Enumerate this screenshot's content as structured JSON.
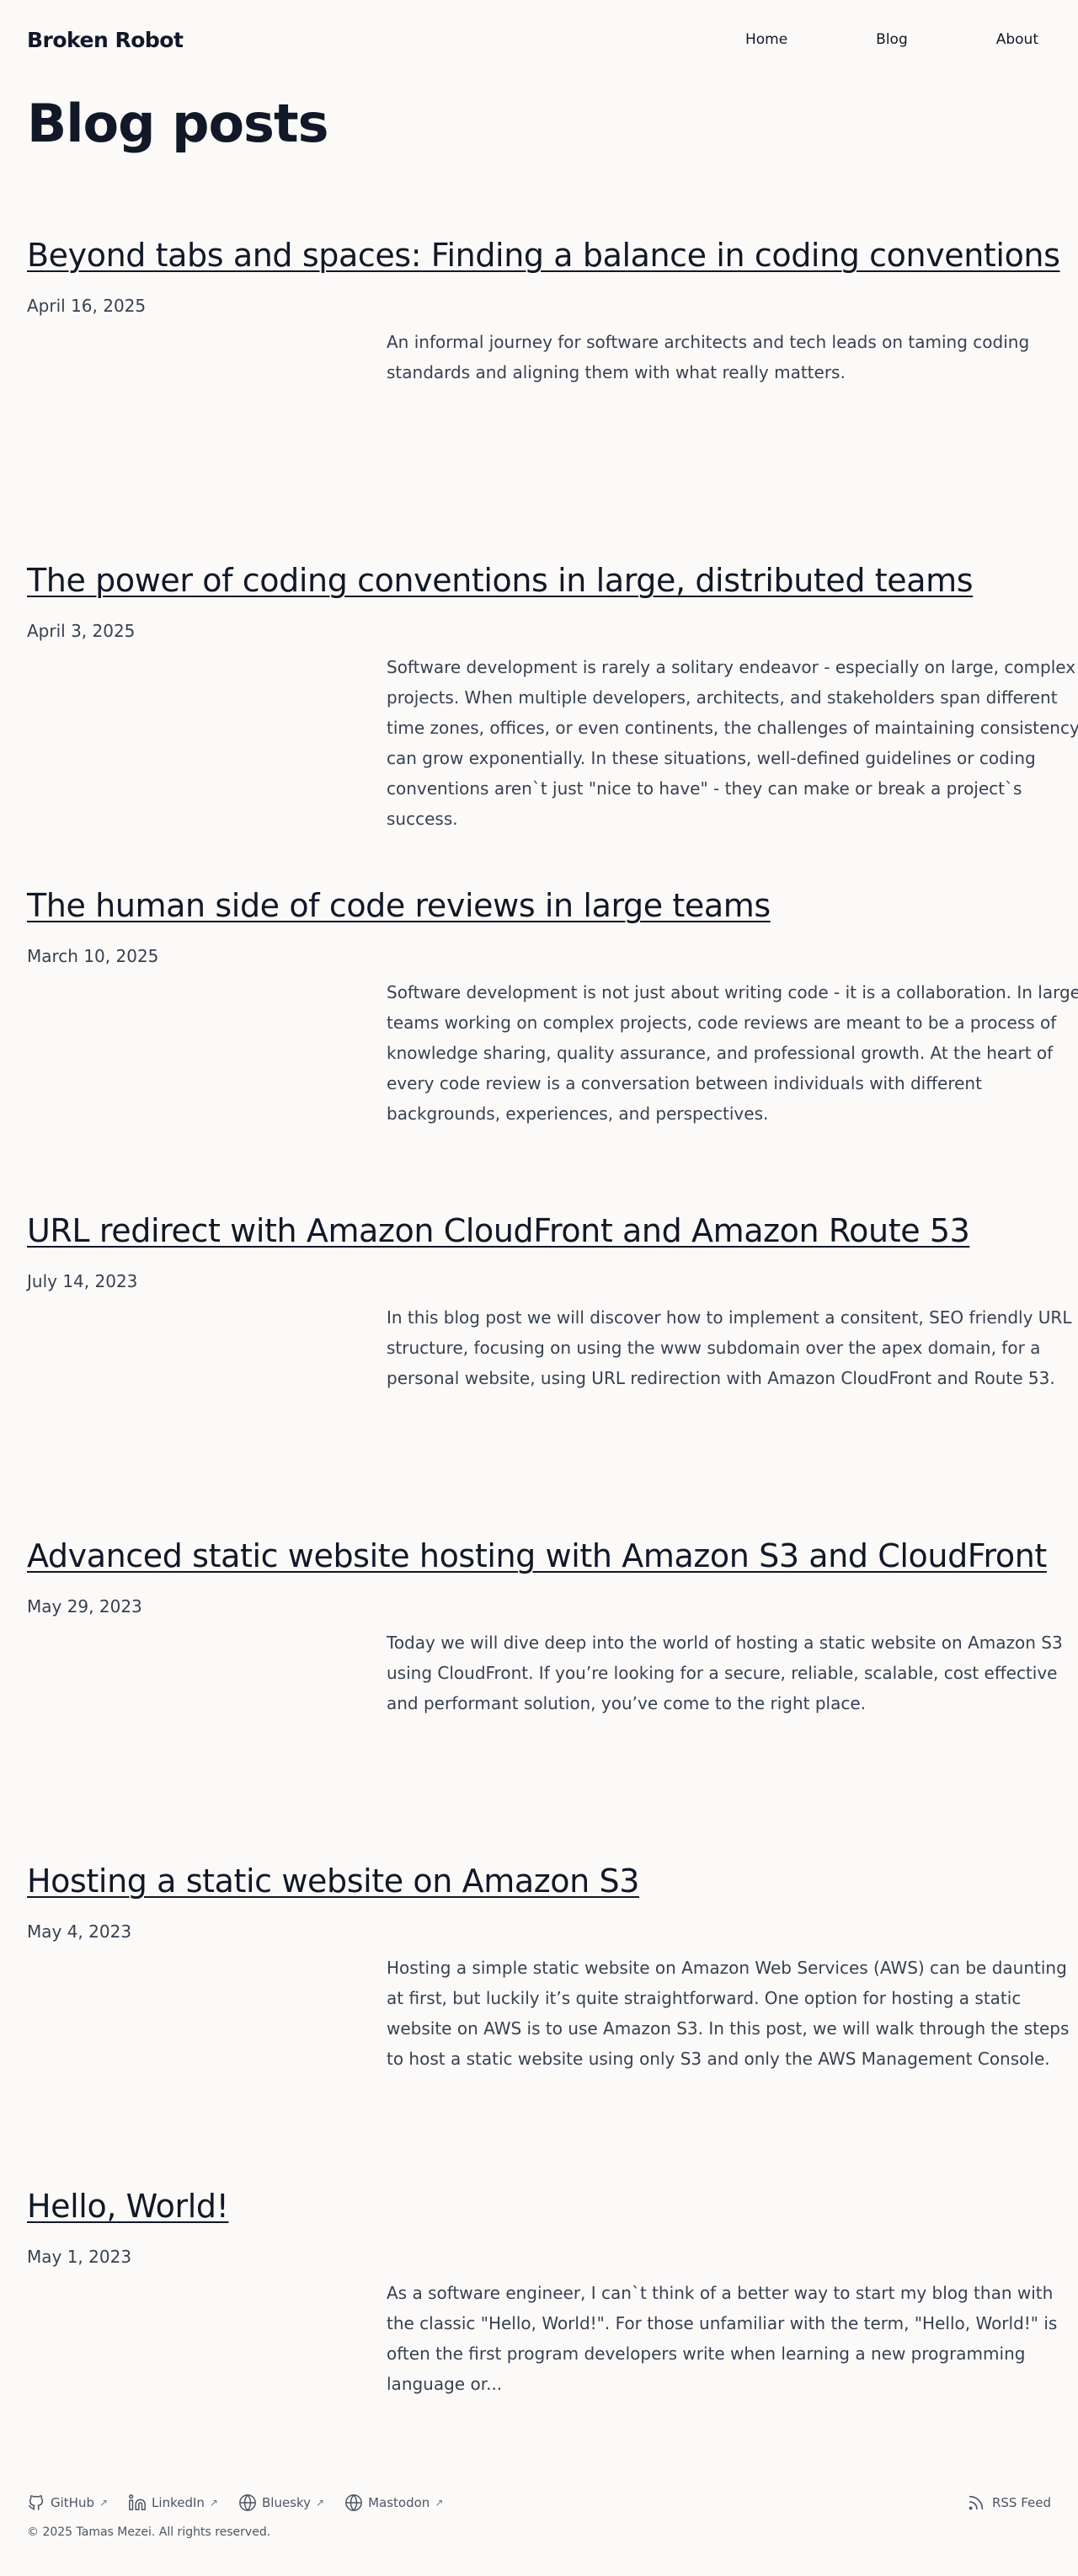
{
  "brand": "Broken Robot",
  "nav": [
    "Home",
    "Blog",
    "About"
  ],
  "page_title": "Blog posts",
  "posts": [
    {
      "title": "Beyond tabs and spaces: Finding a balance in coding conventions",
      "date": "April 16, 2025",
      "excerpt": "An informal journey for software architects and tech leads on taming coding standards and aligning them with what really matters."
    },
    {
      "title": "The power of coding conventions in large, distributed teams",
      "date": "April 3, 2025",
      "excerpt": "Software development is rarely a solitary endeavor - especially on large, complex projects. When multiple developers, architects, and stakeholders span different time zones, offices, or even continents, the challenges of maintaining consistency can grow exponentially. In these situations, well-defined guidelines or coding conventions aren`t just \"nice to have\" - they can make or break a project`s success."
    },
    {
      "title": "The human side of code reviews in large teams",
      "date": "March 10, 2025",
      "excerpt": "Software development is not just about writing code - it is a collaboration. In large teams working on complex projects, code reviews are meant to be a process of knowledge sharing, quality assurance, and professional growth. At the heart of every code review is a conversation between individuals with different backgrounds, experiences, and perspectives."
    },
    {
      "title": "URL redirect with Amazon CloudFront and Amazon Route 53",
      "date": "July 14, 2023",
      "excerpt": "In this blog post we will discover how to implement a consitent, SEO friendly URL structure, focusing on using the www subdomain over the apex domain, for a personal website, using URL redirection with Amazon CloudFront and Route 53."
    },
    {
      "title": "Advanced static website hosting with Amazon S3 and CloudFront",
      "date": "May 29, 2023",
      "excerpt": "Today we will dive deep into the world of hosting a static website on Amazon S3 using CloudFront. If you’re looking for a secure, reliable, scalable, cost effective and performant solution, you’ve come to the right place."
    },
    {
      "title": "Hosting a static website on Amazon S3",
      "date": "May 4, 2023",
      "excerpt": "Hosting a simple static website on Amazon Web Services (AWS) can be daunting at first, but luckily it’s quite straightforward. One option for hosting a static website on AWS is to use Amazon S3. In this post, we will walk through the steps to host a static website using only S3 and only the AWS Management Console."
    },
    {
      "title": "Hello, World!",
      "date": "May 1, 2023",
      "excerpt": "As a software engineer, I can`t think of a better way to start my blog than with the classic \"Hello, World!\". For those unfamiliar with the term, \"Hello, World!\" is often the first program developers write when learning a new programming language or..."
    }
  ],
  "footer": {
    "social": [
      {
        "label": "GitHub",
        "icon": "github-icon"
      },
      {
        "label": "LinkedIn",
        "icon": "linkedin-icon"
      },
      {
        "label": "Bluesky",
        "icon": "globe-icon"
      },
      {
        "label": "Mastodon",
        "icon": "globe-icon"
      }
    ],
    "rss": "RSS Feed",
    "copyright": "© 2025 Tamas Mezei. All rights reserved."
  }
}
